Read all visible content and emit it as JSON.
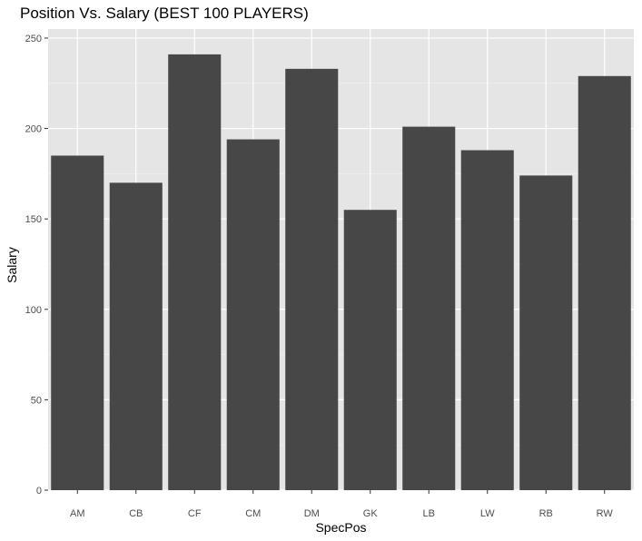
{
  "chart_data": {
    "type": "bar",
    "title": "Position Vs. Salary (BEST 100 PLAYERS)",
    "xlabel": "SpecPos",
    "ylabel": "Salary",
    "categories": [
      "AM",
      "CB",
      "CF",
      "CM",
      "DM",
      "GK",
      "LB",
      "LW",
      "RB",
      "RW"
    ],
    "values": [
      185,
      170,
      241,
      194,
      233,
      155,
      201,
      188,
      174,
      229
    ],
    "ylim": [
      0,
      255
    ],
    "yticks": [
      0,
      50,
      100,
      150,
      200,
      250
    ],
    "grid": true,
    "panel_color": "#e5e5e5",
    "grid_color": "#ffffff",
    "bar_color": "#474747"
  }
}
